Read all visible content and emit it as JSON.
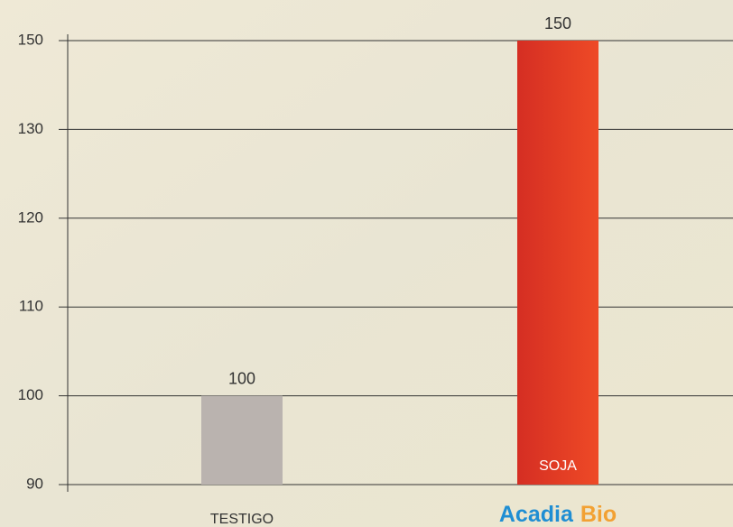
{
  "chart_data": {
    "type": "bar",
    "categories": [
      "TESTIGO",
      "SOJA"
    ],
    "values": [
      100,
      150
    ],
    "colors": [
      "#bab3af",
      "#e23a26"
    ],
    "ylim": [
      90,
      150
    ],
    "yticks": [
      90,
      100,
      110,
      120,
      130,
      150
    ],
    "grid": true,
    "logo": [
      "Acadia",
      "Bio"
    ]
  }
}
